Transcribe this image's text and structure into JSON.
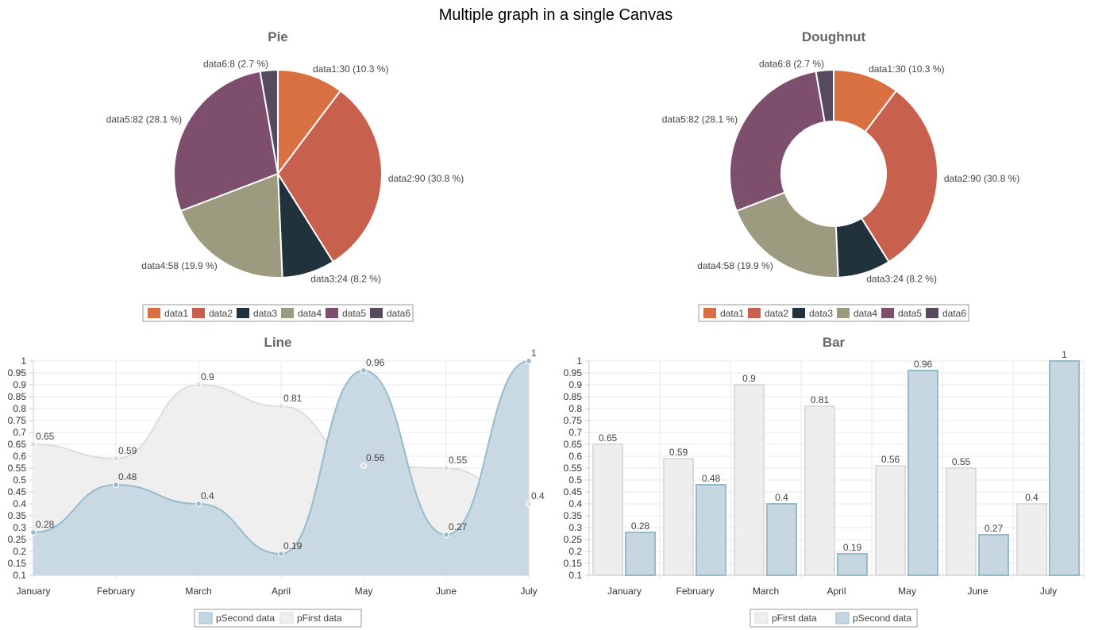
{
  "page_title": "Multiple graph in a single Canvas",
  "chart_data": [
    {
      "type": "pie",
      "title": "Pie",
      "slices": [
        {
          "name": "data1",
          "value": 30,
          "label": "data1:30 (10.3 %)",
          "color": "#D97041"
        },
        {
          "name": "data2",
          "value": 90,
          "label": "data2:90 (30.8 %)",
          "color": "#C7604C"
        },
        {
          "name": "data3",
          "value": 24,
          "label": "data3:24 (8.2 %)",
          "color": "#21323D"
        },
        {
          "name": "data4",
          "value": 58,
          "label": "data4:58 (19.9 %)",
          "color": "#9D9B7F"
        },
        {
          "name": "data5",
          "value": 82,
          "label": "data5:82 (28.1 %)",
          "color": "#7D4F6D"
        },
        {
          "name": "data6",
          "value": 8,
          "label": "data6:8 (2.7 %)",
          "color": "#584A5E"
        }
      ],
      "legend": "bottom"
    },
    {
      "type": "doughnut",
      "title": "Doughnut",
      "slices": [
        {
          "name": "data1",
          "value": 30,
          "label": "data1:30 (10.3 %)",
          "color": "#D97041"
        },
        {
          "name": "data2",
          "value": 90,
          "label": "data2:90 (30.8 %)",
          "color": "#C7604C"
        },
        {
          "name": "data3",
          "value": 24,
          "label": "data3:24 (8.2 %)",
          "color": "#21323D"
        },
        {
          "name": "data4",
          "value": 58,
          "label": "data4:58 (19.9 %)",
          "color": "#9D9B7F"
        },
        {
          "name": "data5",
          "value": 82,
          "label": "data5:82 (28.1 %)",
          "color": "#7D4F6D"
        },
        {
          "name": "data6",
          "value": 8,
          "label": "data6:8 (2.7 %)",
          "color": "#584A5E"
        }
      ],
      "legend": "bottom"
    },
    {
      "type": "line",
      "title": "Line",
      "categories": [
        "January",
        "February",
        "March",
        "April",
        "May",
        "June",
        "July"
      ],
      "series": [
        {
          "name": "pSecond data",
          "values": [
            0.28,
            0.48,
            0.4,
            0.19,
            0.96,
            0.27,
            1
          ],
          "stroke": "#97BBCD",
          "fill": "#C6D7E2"
        },
        {
          "name": "pFirst data",
          "values": [
            0.65,
            0.59,
            0.9,
            0.81,
            0.56,
            0.55,
            0.4
          ],
          "stroke": "#DCDCDC",
          "fill": "#EEEEEE"
        }
      ],
      "y_ticks": [
        "0.1",
        "0.15",
        "0.2",
        "0.25",
        "0.3",
        "0.35",
        "0.4",
        "0.45",
        "0.5",
        "0.55",
        "0.6",
        "0.65",
        "0.7",
        "0.75",
        "0.8",
        "0.85",
        "0.9",
        "0.95",
        "1"
      ],
      "ylim": [
        0.1,
        1
      ],
      "grid": true,
      "legend": "bottom"
    },
    {
      "type": "bar",
      "title": "Bar",
      "categories": [
        "January",
        "February",
        "March",
        "April",
        "May",
        "June",
        "July"
      ],
      "series": [
        {
          "name": "pFirst data",
          "values": [
            0.65,
            0.59,
            0.9,
            0.81,
            0.56,
            0.55,
            0.4
          ],
          "stroke": "#DCDCDC",
          "fill": "#EEEEEE"
        },
        {
          "name": "pSecond data",
          "values": [
            0.28,
            0.48,
            0.4,
            0.19,
            0.96,
            0.27,
            1
          ],
          "stroke": "#97BBCD",
          "fill": "#C6D7E2"
        }
      ],
      "y_ticks": [
        "0.1",
        "0.15",
        "0.2",
        "0.25",
        "0.3",
        "0.35",
        "0.4",
        "0.45",
        "0.5",
        "0.55",
        "0.6",
        "0.65",
        "0.7",
        "0.75",
        "0.8",
        "0.85",
        "0.9",
        "0.95",
        "1"
      ],
      "ylim": [
        0.1,
        1
      ],
      "grid": true,
      "legend": "bottom"
    }
  ]
}
